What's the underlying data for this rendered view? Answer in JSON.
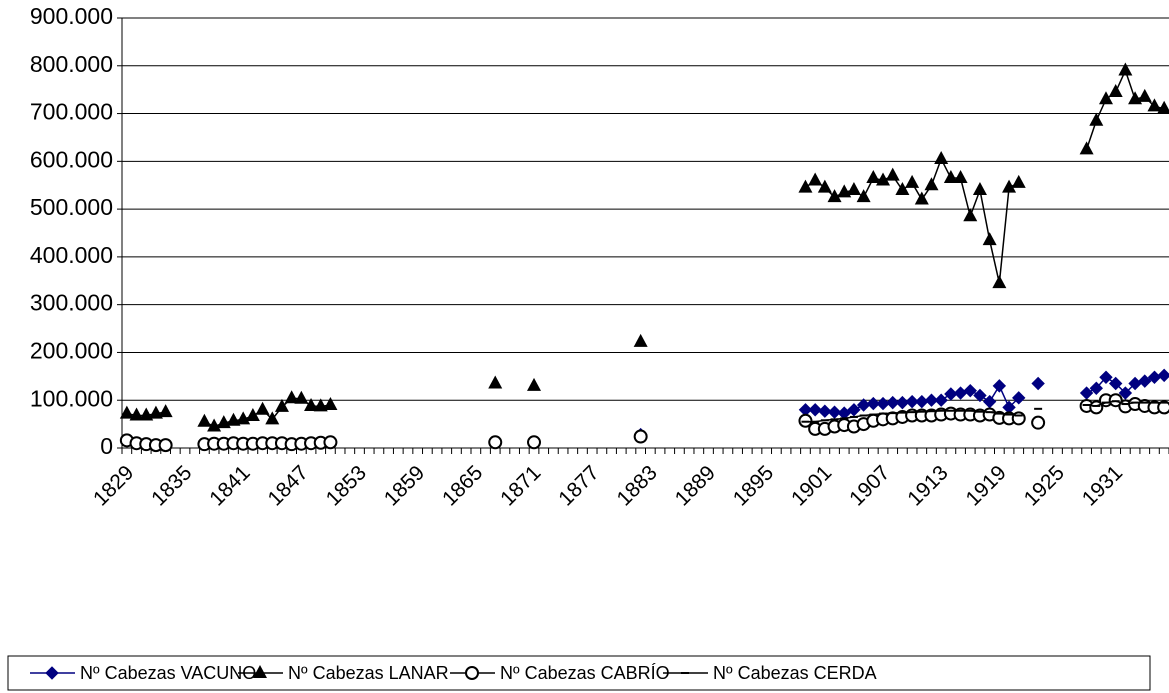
{
  "chart_data": {
    "type": "line",
    "x": [
      1829,
      1830,
      1831,
      1832,
      1833,
      1834,
      1837,
      1838,
      1839,
      1840,
      1841,
      1842,
      1843,
      1844,
      1845,
      1846,
      1847,
      1848,
      1849,
      1850,
      1851,
      1867,
      1868,
      1871,
      1872,
      1882,
      1883,
      1899,
      1900,
      1901,
      1902,
      1903,
      1904,
      1905,
      1906,
      1907,
      1908,
      1909,
      1910,
      1911,
      1912,
      1913,
      1914,
      1915,
      1916,
      1917,
      1918,
      1919,
      1920,
      1921,
      1922,
      1923,
      1924,
      1928,
      1929,
      1930,
      1931,
      1932,
      1933,
      1934,
      1935,
      1936
    ],
    "xlim": [
      1828.5,
      1936.5
    ],
    "xticks": [
      1829,
      1835,
      1841,
      1847,
      1853,
      1859,
      1865,
      1871,
      1877,
      1883,
      1889,
      1895,
      1901,
      1907,
      1913,
      1919,
      1925,
      1931
    ],
    "ylim": [
      0,
      900000
    ],
    "yticks": [
      0,
      {
        "value": 100000,
        "label": "100.000"
      },
      {
        "value": 200000,
        "label": "200.000"
      },
      {
        "value": 300000,
        "label": "300.000"
      },
      {
        "value": 400000,
        "label": "400.000"
      },
      {
        "value": 500000,
        "label": "500.000"
      },
      {
        "value": 600000,
        "label": "600.000"
      },
      {
        "value": 700000,
        "label": "700.000"
      },
      {
        "value": 800000,
        "label": "800.000"
      },
      {
        "value": 900000,
        "label": "900.000"
      }
    ],
    "grid": true,
    "legend": "bottom",
    "series": [
      {
        "name": "Nº Cabezas VACUNO",
        "color": "#000080",
        "marker": "diamond",
        "values": [
          null,
          null,
          null,
          null,
          null,
          null,
          null,
          null,
          null,
          null,
          null,
          null,
          null,
          null,
          null,
          null,
          null,
          null,
          null,
          null,
          null,
          null,
          null,
          null,
          null,
          28000,
          null,
          80000,
          80000,
          77000,
          75000,
          73000,
          80000,
          90000,
          93000,
          93000,
          95000,
          95000,
          97000,
          97000,
          100000,
          100000,
          113000,
          115000,
          120000,
          110000,
          97000,
          130000,
          85000,
          105000,
          null,
          135000,
          null,
          115000,
          125000,
          148000,
          135000,
          115000,
          135000,
          140000,
          148000,
          152000
        ]
      },
      {
        "name": "Nº Cabezas LANAR",
        "color": "#000000",
        "marker": "triangle",
        "values": [
          72000,
          68000,
          68000,
          72000,
          75000,
          null,
          55000,
          45000,
          52000,
          57000,
          60000,
          67000,
          80000,
          60000,
          86000,
          104000,
          103000,
          88000,
          87000,
          90000,
          null,
          135000,
          null,
          130000,
          null,
          222000,
          null,
          545000,
          560000,
          545000,
          525000,
          535000,
          540000,
          525000,
          565000,
          560000,
          570000,
          540000,
          555000,
          520000,
          550000,
          605000,
          565000,
          565000,
          485000,
          540000,
          435000,
          345000,
          545000,
          555000,
          null,
          null,
          null,
          625000,
          685000,
          730000,
          745000,
          790000,
          730000,
          735000,
          715000,
          710000
        ]
      },
      {
        "name": "Nº Cabezas CABRÍO",
        "color": "#000000",
        "marker": "circle",
        "values": [
          16000,
          10000,
          8000,
          6000,
          6000,
          null,
          8000,
          9000,
          9000,
          10000,
          9000,
          9000,
          10000,
          10000,
          10000,
          8000,
          9000,
          10000,
          11000,
          12000,
          null,
          12000,
          null,
          12000,
          null,
          24000,
          null,
          57000,
          40000,
          40000,
          45000,
          48000,
          45000,
          50000,
          57000,
          60000,
          62000,
          65000,
          68000,
          68000,
          68000,
          70000,
          72000,
          70000,
          70000,
          68000,
          70000,
          63000,
          62000,
          62000,
          null,
          53000,
          null,
          88000,
          85000,
          100000,
          100000,
          87000,
          92000,
          88000,
          85000,
          85000
        ]
      },
      {
        "name": "Nº Cabezas CERDA",
        "color": "#000000",
        "marker": "dash",
        "values": [
          null,
          null,
          null,
          null,
          null,
          null,
          null,
          null,
          null,
          null,
          null,
          null,
          null,
          null,
          null,
          null,
          null,
          null,
          null,
          null,
          null,
          null,
          null,
          null,
          null,
          null,
          null,
          55000,
          55000,
          58000,
          60000,
          62000,
          65000,
          68000,
          70000,
          72000,
          73000,
          74000,
          75000,
          76000,
          77000,
          78000,
          78000,
          78000,
          78000,
          76000,
          75000,
          72000,
          70000,
          68000,
          null,
          82000,
          null,
          90000,
          88000,
          95000,
          98000,
          92000,
          95000,
          95000,
          95000,
          95000
        ]
      }
    ]
  }
}
